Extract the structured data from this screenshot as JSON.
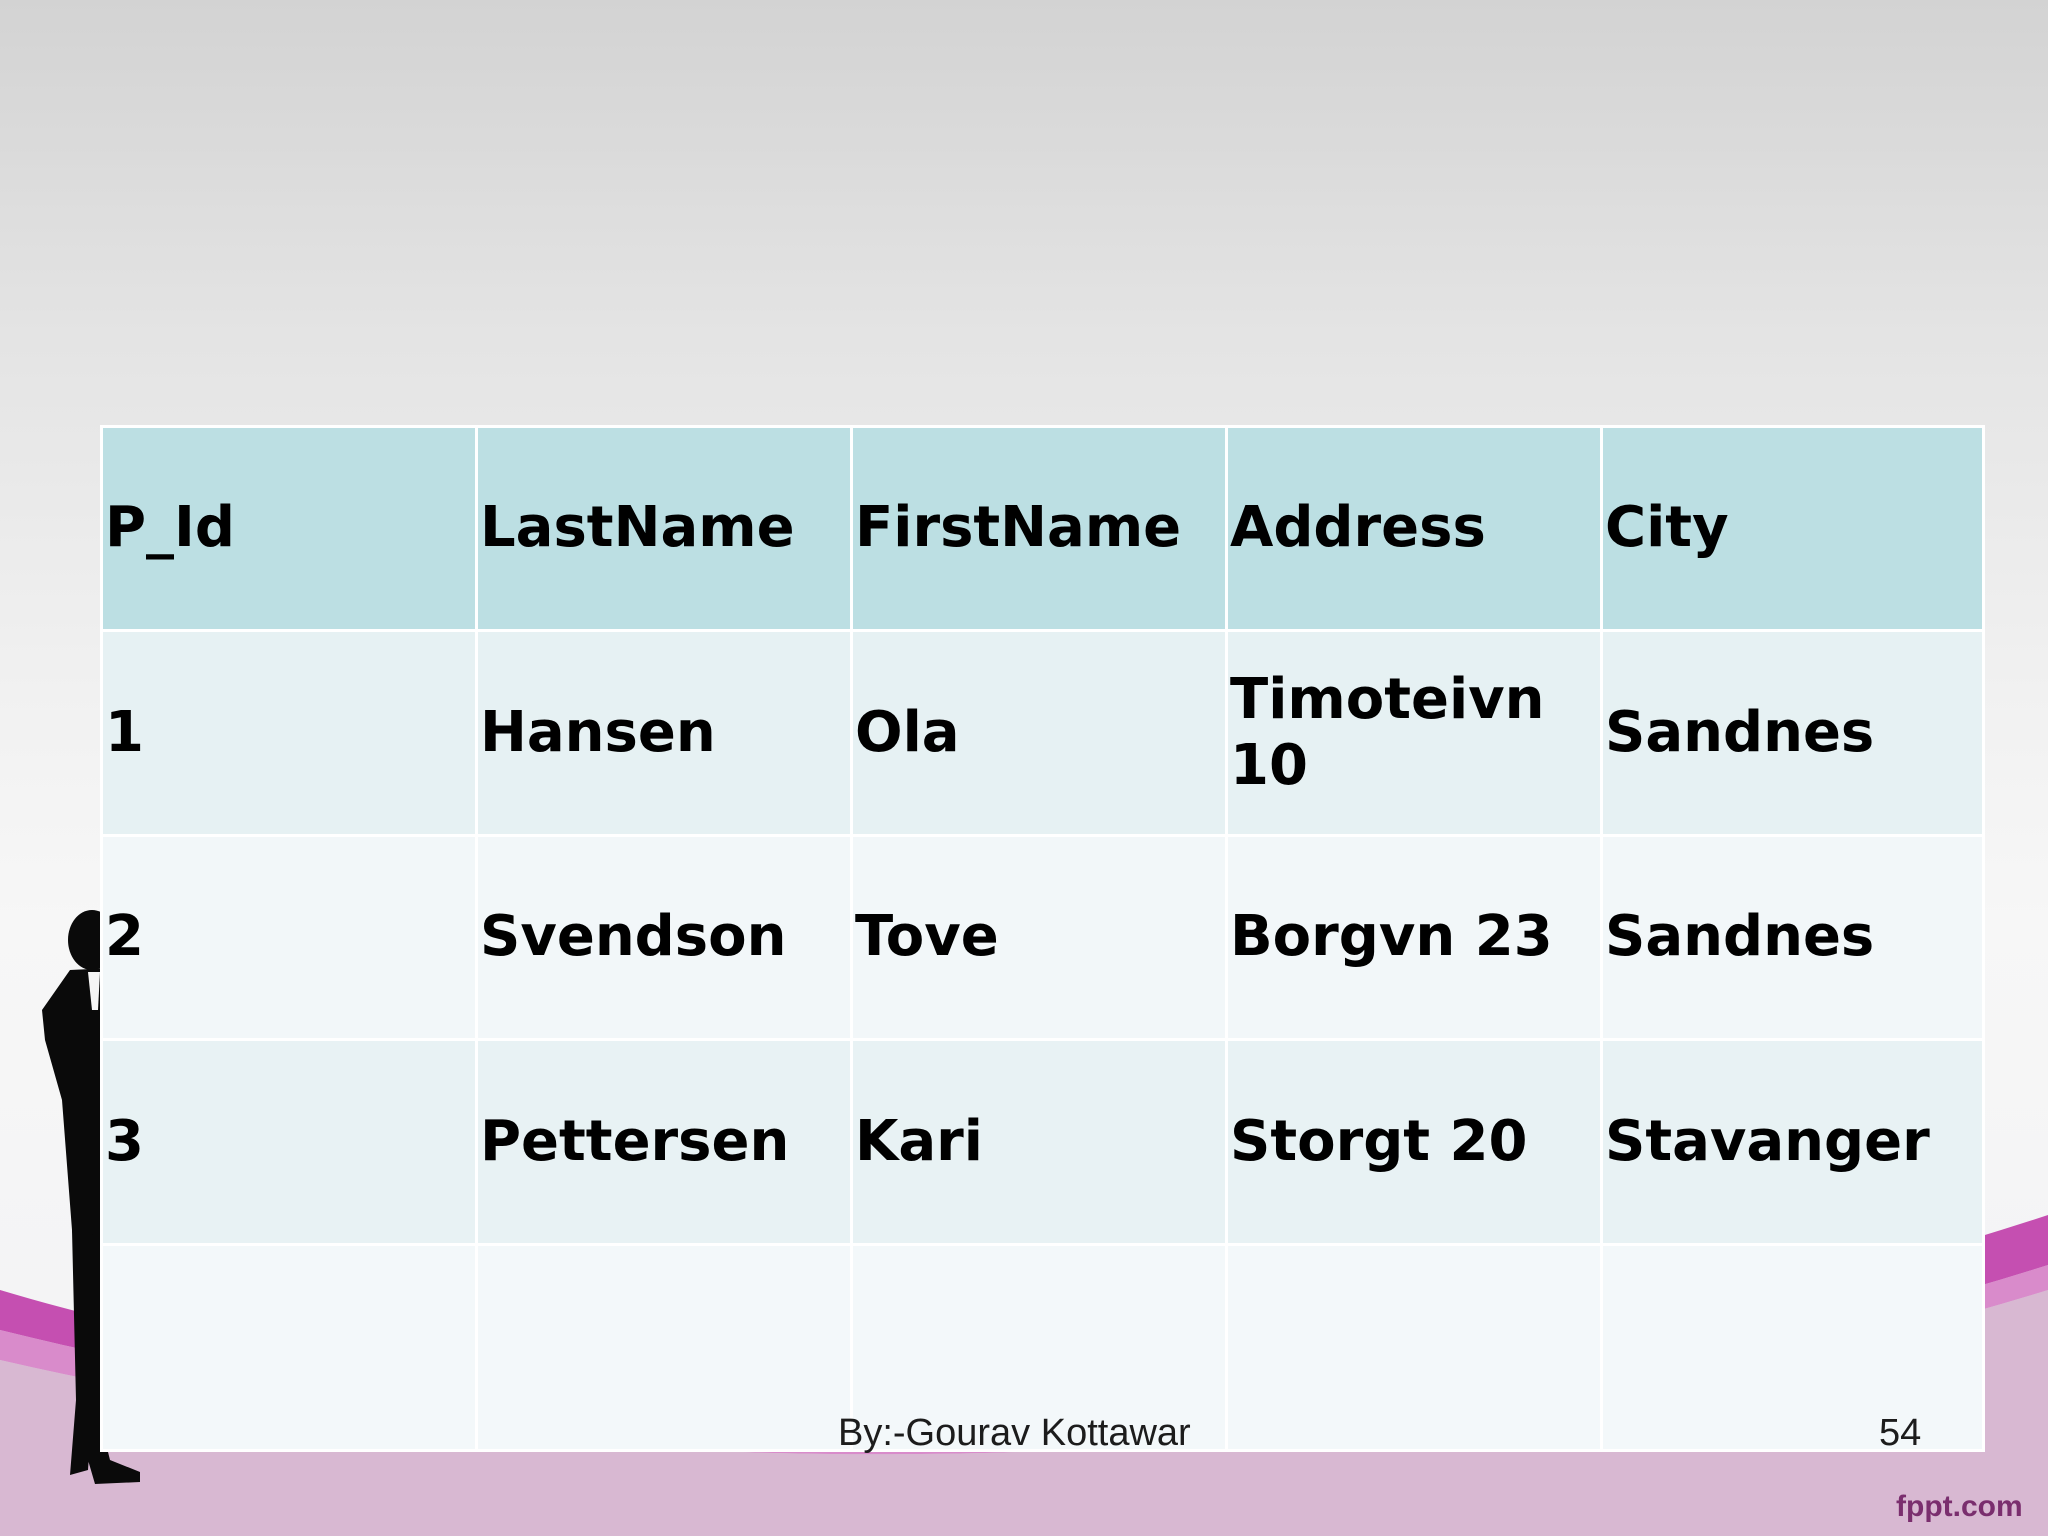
{
  "colors": {
    "header_bg": "#bcdfe3",
    "row_bg": "#e8f2f4",
    "row_bg_alt": "#f2f7f9",
    "wave_magenta": "#c54fb1",
    "brand": "#7a2e6e"
  },
  "table": {
    "headers": [
      "P_Id",
      "LastName",
      "FirstName",
      "Address",
      "City"
    ],
    "rows": [
      [
        "1",
        "Hansen",
        "Ola",
        "Timoteivn 10",
        "Sandnes"
      ],
      [
        "2",
        "Svendson",
        "Tove",
        "Borgvn 23",
        "Sandnes"
      ],
      [
        "3",
        "Pettersen",
        "Kari",
        "Storgt 20",
        "Stavanger"
      ],
      [
        "",
        "",
        "",
        "",
        ""
      ]
    ]
  },
  "footer": {
    "author": "By:-Gourav Kottawar",
    "page_number": "54",
    "brand": "fppt.com"
  },
  "decorations": {
    "silhouette": "businessman-silhouette-icon"
  }
}
